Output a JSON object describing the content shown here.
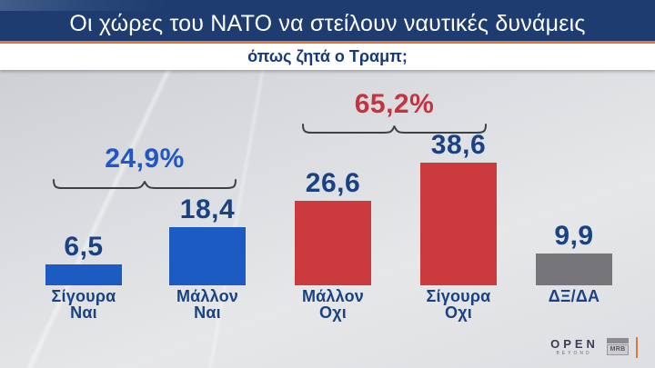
{
  "header": {
    "title": "Οι χώρες του ΝΑΤΟ να στείλουν ναυτικές δυνάμεις",
    "subtitle": "όπως ζητά ο Τραμπ;"
  },
  "chart_data": {
    "type": "bar",
    "title": "Οι χώρες του ΝΑΤΟ να στείλουν ναυτικές δυνάμεις όπως ζητά ο Τραμπ;",
    "unit": "%",
    "categories": [
      "Σίγουρα Ναι",
      "Μάλλον Ναι",
      "Μάλλον Οχι",
      "Σίγουρα Οχι",
      "ΔΞ/ΔΑ"
    ],
    "categories_display": [
      "Σίγουρα\nΝαι",
      "Μάλλον\nΝαι",
      "Μάλλον\nΟχι",
      "Σίγουρα\nΟχι",
      "ΔΞ/ΔΑ"
    ],
    "values": [
      6.5,
      18.4,
      26.6,
      38.6,
      9.9
    ],
    "value_labels": [
      "6,5",
      "18,4",
      "26,6",
      "38,6",
      "9,9"
    ],
    "bar_colors": [
      "#1c5cc2",
      "#1c5cc2",
      "#cb3a3c",
      "#cb3a3c",
      "#76767a"
    ],
    "groups": [
      {
        "label": "24,9%",
        "value": 24.9,
        "color": "#2156c4",
        "bars": [
          0,
          1
        ]
      },
      {
        "label": "65,2%",
        "value": 65.2,
        "color": "#c43340",
        "bars": [
          2,
          3
        ]
      }
    ],
    "ylim": [
      0,
      40
    ],
    "grid": false,
    "legend": false
  },
  "footer": {
    "open": "OPEN",
    "open_tagline": "BEYOND",
    "mrb": "MRB"
  },
  "colors": {
    "header_navy": "#1e3c6f",
    "orange": "#e0763a",
    "subtitle_navy": "#15397b",
    "value_navy": "#1a4282",
    "bracket": "#3f3f48",
    "bar_blue": "#1c5cc2",
    "bar_red": "#cb3a3c",
    "bar_gray": "#76767a"
  }
}
